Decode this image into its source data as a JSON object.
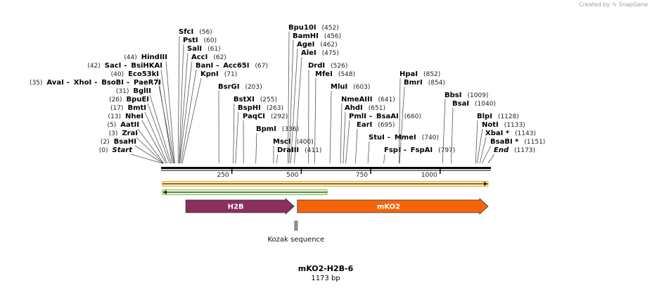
{
  "credit": {
    "prefix": "Created by",
    "brand": "SnapGene"
  },
  "plasmid": {
    "name": "mKO2-H2B-6",
    "length_label": "1173 bp",
    "length": 1173
  },
  "colors": {
    "h2b": "#8b2f5e",
    "mko2": "#f4640b",
    "orf_top": "#f0a830",
    "orf_bottom": "#6fc04b",
    "kozak": "#999999"
  },
  "ticks": [
    {
      "label": "250",
      "pos": 250
    },
    {
      "label": "500",
      "pos": 500
    },
    {
      "label": "750",
      "pos": 750
    },
    {
      "label": "1000",
      "pos": 1000
    }
  ],
  "enzymes": [
    {
      "parts": [
        {
          "name": "SfcI",
          "site": 56
        }
      ],
      "pos_label": "(56)",
      "pos_after": true
    },
    {
      "parts": [
        {
          "name": "PstI",
          "site": 60
        }
      ],
      "pos_label": "(60)",
      "pos_after": true
    },
    {
      "parts": [
        {
          "name": "SalI",
          "site": 61
        }
      ],
      "pos_label": "(61)",
      "pos_after": true
    },
    {
      "parts": [
        {
          "name": "AccI",
          "site": 62
        }
      ],
      "pos_label": "(62)",
      "pos_after": true
    },
    {
      "parts": [
        {
          "name": "BanI",
          "site": 67
        },
        {
          "name": "Acc65I",
          "site": 67
        }
      ],
      "pos_label": "(67)",
      "pos_after": true
    },
    {
      "parts": [
        {
          "name": "KpnI",
          "site": 71
        }
      ],
      "pos_label": "(71)",
      "pos_after": true
    },
    {
      "parts": [
        {
          "name": "HindIII",
          "site": 44
        }
      ],
      "pos_label": "(44)",
      "pos_after": false
    },
    {
      "parts": [
        {
          "name": "SacI",
          "site": 42
        },
        {
          "name": "BsiHKAI",
          "site": 42
        }
      ],
      "pos_label": "(42)",
      "pos_after": false
    },
    {
      "parts": [
        {
          "name": "Eco53kI",
          "site": 40
        }
      ],
      "pos_label": "(40)",
      "pos_after": false
    },
    {
      "parts": [
        {
          "name": "AvaI",
          "site": 35
        },
        {
          "name": "XhoI",
          "site": 35
        },
        {
          "name": "BsoBI",
          "site": 35
        },
        {
          "name": "PaeR7I",
          "site": 35
        }
      ],
      "pos_label": "(35)",
      "pos_after": false
    },
    {
      "parts": [
        {
          "name": "BglII",
          "site": 31
        }
      ],
      "pos_label": "(31)",
      "pos_after": false
    },
    {
      "parts": [
        {
          "name": "BpuEI",
          "site": 26
        }
      ],
      "pos_label": "(26)",
      "pos_after": false
    },
    {
      "parts": [
        {
          "name": "BmtI",
          "site": 17
        }
      ],
      "pos_label": "(17)",
      "pos_after": false
    },
    {
      "parts": [
        {
          "name": "NheI",
          "site": 13
        }
      ],
      "pos_label": "(13)",
      "pos_after": false
    },
    {
      "parts": [
        {
          "name": "AatII",
          "site": 5
        }
      ],
      "pos_label": "(5)",
      "pos_after": false
    },
    {
      "parts": [
        {
          "name": "ZraI",
          "site": 3
        }
      ],
      "pos_label": "(3)",
      "pos_after": false
    },
    {
      "parts": [
        {
          "name": "BsaHI",
          "site": 2
        }
      ],
      "pos_label": "(2)",
      "pos_after": false
    },
    {
      "parts": [
        {
          "name": "Start",
          "site": 0,
          "italic": true
        }
      ],
      "pos_label": "(0)",
      "pos_after": false
    },
    {
      "parts": [
        {
          "name": "BsrGI",
          "site": 203
        }
      ],
      "pos_label": "(203)",
      "pos_after": true
    },
    {
      "parts": [
        {
          "name": "BstXI",
          "site": 255
        }
      ],
      "pos_label": "(255)",
      "pos_after": true
    },
    {
      "parts": [
        {
          "name": "BspHI",
          "site": 263
        }
      ],
      "pos_label": "(263)",
      "pos_after": true
    },
    {
      "parts": [
        {
          "name": "PaqCI",
          "site": 292
        }
      ],
      "pos_label": "(292)",
      "pos_after": true
    },
    {
      "parts": [
        {
          "name": "BpmI",
          "site": 336
        }
      ],
      "pos_label": "(336)",
      "pos_after": true
    },
    {
      "parts": [
        {
          "name": "Bpu10I",
          "site": 452
        }
      ],
      "pos_label": "(452)",
      "pos_after": true
    },
    {
      "parts": [
        {
          "name": "BamHI",
          "site": 456
        }
      ],
      "pos_label": "(456)",
      "pos_after": true
    },
    {
      "parts": [
        {
          "name": "AgeI",
          "site": 462
        }
      ],
      "pos_label": "(462)",
      "pos_after": true
    },
    {
      "parts": [
        {
          "name": "AleI",
          "site": 475
        }
      ],
      "pos_label": "(475)",
      "pos_after": true
    },
    {
      "parts": [
        {
          "name": "DrdI",
          "site": 526
        }
      ],
      "pos_label": "(526)",
      "pos_after": true
    },
    {
      "parts": [
        {
          "name": "MfeI",
          "site": 548
        }
      ],
      "pos_label": "(548)",
      "pos_after": true
    },
    {
      "parts": [
        {
          "name": "MscI",
          "site": 400
        }
      ],
      "pos_label": "(400)",
      "pos_after": true
    },
    {
      "parts": [
        {
          "name": "DraIII",
          "site": 411
        }
      ],
      "pos_label": "(411)",
      "pos_after": true
    },
    {
      "parts": [
        {
          "name": "MluI",
          "site": 603
        }
      ],
      "pos_label": "(603)",
      "pos_after": true
    },
    {
      "parts": [
        {
          "name": "NmeAIII",
          "site": 641
        }
      ],
      "pos_label": "(641)",
      "pos_after": true
    },
    {
      "parts": [
        {
          "name": "AhdI",
          "site": 651
        }
      ],
      "pos_label": "(651)",
      "pos_after": true
    },
    {
      "parts": [
        {
          "name": "PmlI",
          "site": 660
        },
        {
          "name": "BsaAI",
          "site": 660
        }
      ],
      "pos_label": "(660)",
      "pos_after": true
    },
    {
      "parts": [
        {
          "name": "EarI",
          "site": 695
        }
      ],
      "pos_label": "(695)",
      "pos_after": true
    },
    {
      "parts": [
        {
          "name": "StuI",
          "site": 740
        },
        {
          "name": "MmeI",
          "site": 740
        }
      ],
      "pos_label": "(740)",
      "pos_after": true
    },
    {
      "parts": [
        {
          "name": "FspI",
          "site": 797
        },
        {
          "name": "FspAI",
          "site": 797
        }
      ],
      "pos_label": "(797)",
      "pos_after": true
    },
    {
      "parts": [
        {
          "name": "HpaI",
          "site": 852
        }
      ],
      "pos_label": "(852)",
      "pos_after": true
    },
    {
      "parts": [
        {
          "name": "BmrI",
          "site": 854
        }
      ],
      "pos_label": "(854)",
      "pos_after": true
    },
    {
      "parts": [
        {
          "name": "BbsI",
          "site": 1009
        }
      ],
      "pos_label": "(1009)",
      "pos_after": true
    },
    {
      "parts": [
        {
          "name": "BsaI",
          "site": 1040
        }
      ],
      "pos_label": "(1040)",
      "pos_after": true
    },
    {
      "parts": [
        {
          "name": "BlpI",
          "site": 1128
        }
      ],
      "pos_label": "(1128)",
      "pos_after": true
    },
    {
      "parts": [
        {
          "name": "NotI",
          "site": 1133
        }
      ],
      "pos_label": "(1133)",
      "pos_after": true
    },
    {
      "parts": [
        {
          "name": "XbaI *",
          "site": 1143
        }
      ],
      "pos_label": "(1143)",
      "pos_after": true
    },
    {
      "parts": [
        {
          "name": "BsaBI *",
          "site": 1151
        }
      ],
      "pos_label": "(1151)",
      "pos_after": true
    },
    {
      "parts": [
        {
          "name": "End",
          "site": 1173,
          "italic": true
        }
      ],
      "pos_label": "(1173)",
      "pos_after": true
    }
  ],
  "features": [
    {
      "name": "H2B",
      "start": 84,
      "end": 474,
      "direction": "forward",
      "color": "#8b2f5e"
    },
    {
      "name": "mKO2",
      "start": 486,
      "end": 1173,
      "direction": "forward",
      "color": "#f4640b"
    }
  ],
  "orfs": [
    {
      "start": 0,
      "end": 1173,
      "direction": "forward",
      "color": "#f0a830"
    },
    {
      "start": 0,
      "end": 593,
      "direction": "reverse",
      "color": "#6fc04b"
    }
  ],
  "misc_features": [
    {
      "name": "Kozak sequence",
      "start": 476,
      "end": 486,
      "color": "#999999"
    }
  ]
}
